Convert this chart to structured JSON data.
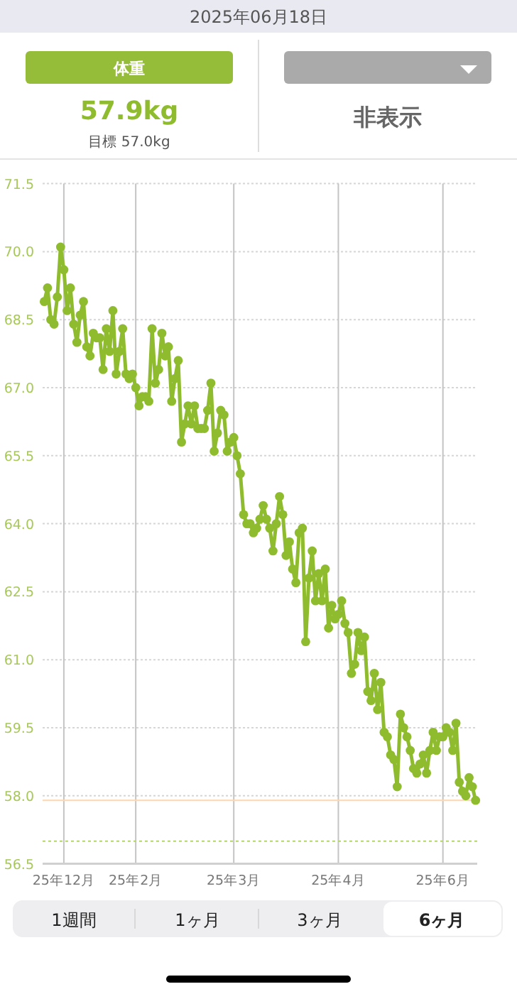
{
  "chart_data": {
    "type": "line",
    "title": "2025年06月18日",
    "annotations": [
      "体重",
      "57.9kg",
      "目標 57.0kg",
      "非表示",
      "1週間",
      "1ヶ月",
      "3ヶ月",
      "6ヶ月"
    ],
    "categories": [
      null,
      null,
      null,
      null,
      null,
      null,
      "25年12月",
      null,
      null,
      null,
      null,
      null,
      null,
      null,
      null,
      null,
      null,
      null,
      null,
      null,
      null,
      null,
      null,
      null,
      null,
      null,
      null,
      null,
      "25年2月",
      null,
      null,
      null,
      null,
      null,
      null,
      null,
      null,
      null,
      null,
      null,
      null,
      null,
      null,
      null,
      null,
      null,
      null,
      null,
      null,
      null,
      null,
      null,
      null,
      null,
      null,
      null,
      null,
      null,
      "25年3月",
      null,
      null,
      null,
      null,
      null,
      null,
      null,
      null,
      null,
      null,
      null,
      null,
      null,
      null,
      null,
      null,
      null,
      null,
      null,
      null,
      null,
      null,
      null,
      null,
      null,
      null,
      null,
      null,
      null,
      null,
      null,
      "25年4月",
      null,
      null,
      null,
      null,
      null,
      null,
      null,
      null,
      null,
      null,
      null,
      null,
      null,
      null,
      null,
      null,
      null,
      null,
      null,
      null,
      null,
      null,
      null,
      null,
      null,
      null,
      null,
      null,
      null,
      null,
      null,
      "25年6月",
      null,
      null,
      null,
      null,
      null,
      null,
      null,
      null,
      null,
      null
    ],
    "series": [
      {
        "color": "#8fbc2e",
        "values": [
          68.9,
          69.2,
          68.5,
          68.4,
          69.0,
          70.1,
          69.6,
          68.7,
          69.2,
          68.4,
          68.0,
          68.6,
          68.9,
          67.9,
          67.7,
          68.2,
          68.1,
          68.1,
          67.4,
          68.3,
          67.8,
          68.7,
          67.3,
          67.8,
          68.3,
          67.3,
          67.2,
          67.3,
          67.0,
          66.6,
          66.8,
          66.8,
          66.7,
          68.3,
          67.1,
          67.4,
          68.2,
          67.7,
          67.9,
          66.7,
          67.2,
          67.6,
          65.8,
          66.2,
          66.6,
          66.2,
          66.6,
          66.1,
          66.1,
          66.1,
          66.5,
          67.1,
          65.6,
          66.0,
          66.5,
          66.4,
          65.6,
          65.8,
          65.9,
          65.5,
          65.1,
          64.2,
          64.0,
          64.0,
          63.8,
          63.9,
          64.1,
          64.4,
          64.1,
          63.9,
          63.4,
          64.0,
          64.6,
          64.2,
          63.3,
          63.6,
          63.0,
          62.7,
          63.8,
          63.9,
          61.4,
          62.8,
          63.4,
          62.3,
          62.9,
          62.3,
          63.0,
          61.7,
          62.2,
          61.9,
          62.0,
          62.3,
          61.8,
          61.6,
          60.7,
          60.9,
          61.6,
          61.2,
          61.5,
          60.3,
          60.1,
          60.7,
          59.9,
          60.5,
          59.4,
          59.3,
          58.9,
          58.8,
          58.2,
          59.8,
          59.5,
          59.3,
          59.0,
          58.6,
          58.5,
          58.7,
          58.9,
          58.5,
          59.0,
          59.4,
          59.0,
          59.3,
          59.3,
          59.5,
          59.4,
          59.0,
          59.6,
          58.3,
          58.1,
          58.0,
          58.4,
          58.2,
          57.9
        ]
      }
    ],
    "ylim": [
      56.5,
      71.5
    ],
    "yticks": [
      {
        "value": 56.5,
        "label": "56.5"
      },
      {
        "value": 58.0,
        "label": "58.0"
      },
      {
        "value": 59.5,
        "label": "59.5"
      },
      {
        "value": 61.0,
        "label": "61.0"
      },
      {
        "value": 62.5,
        "label": "62.5"
      },
      {
        "value": 64.0,
        "label": "64.0"
      },
      {
        "value": 65.5,
        "label": "65.5"
      },
      {
        "value": 67.0,
        "label": "67.0"
      },
      {
        "value": 68.5,
        "label": "68.5"
      },
      {
        "value": 70.0,
        "label": "70.0"
      },
      {
        "value": 71.5,
        "label": "71.5"
      }
    ],
    "grid": true,
    "marker": "circle",
    "line_style": "solid",
    "ref_lines": [
      {
        "axis": "y",
        "value": 57.9,
        "color": "#ffd6ad",
        "line_style": "solid"
      },
      {
        "axis": "y",
        "value": 57.0,
        "color": "#b5d56a",
        "line_style": "dotted"
      }
    ]
  }
}
